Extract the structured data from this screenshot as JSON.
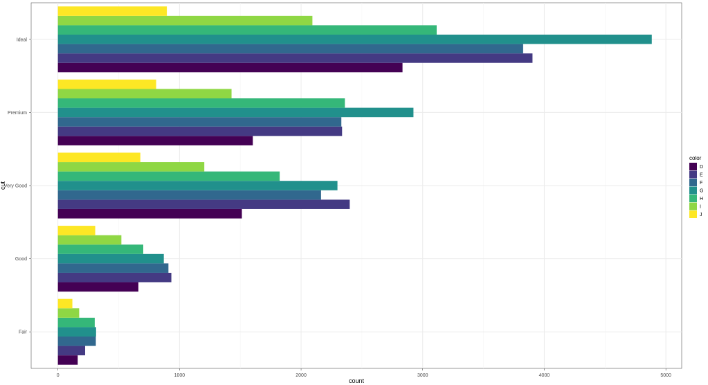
{
  "chart_data": {
    "type": "bar",
    "orientation": "horizontal",
    "position": "dodge",
    "title": "",
    "xlabel": "count",
    "ylabel": "cut",
    "categories": [
      "Fair",
      "Good",
      "Very Good",
      "Premium",
      "Ideal"
    ],
    "xlim": [
      -220,
      5130
    ],
    "x_ticks": [
      0,
      1000,
      2000,
      3000,
      4000,
      5000
    ],
    "x_tick_labels": [
      "0",
      "1000",
      "2000",
      "3000",
      "4000",
      "5000"
    ],
    "grid": true,
    "legend": {
      "title": "color",
      "position": "right"
    },
    "series": [
      {
        "name": "D",
        "color": "#440154",
        "values": [
          163,
          662,
          1513,
          1603,
          2834
        ]
      },
      {
        "name": "E",
        "color": "#443A83",
        "values": [
          224,
          933,
          2400,
          2337,
          3903
        ]
      },
      {
        "name": "F",
        "color": "#31688E",
        "values": [
          312,
          909,
          2164,
          2331,
          3826
        ]
      },
      {
        "name": "G",
        "color": "#21908C",
        "values": [
          314,
          871,
          2299,
          2924,
          4884
        ]
      },
      {
        "name": "H",
        "color": "#35B779",
        "values": [
          303,
          702,
          1824,
          2360,
          3115
        ]
      },
      {
        "name": "I",
        "color": "#8FD744",
        "values": [
          175,
          522,
          1204,
          1428,
          2093
        ]
      },
      {
        "name": "J",
        "color": "#FDE725",
        "values": [
          119,
          307,
          678,
          808,
          896
        ]
      }
    ]
  }
}
